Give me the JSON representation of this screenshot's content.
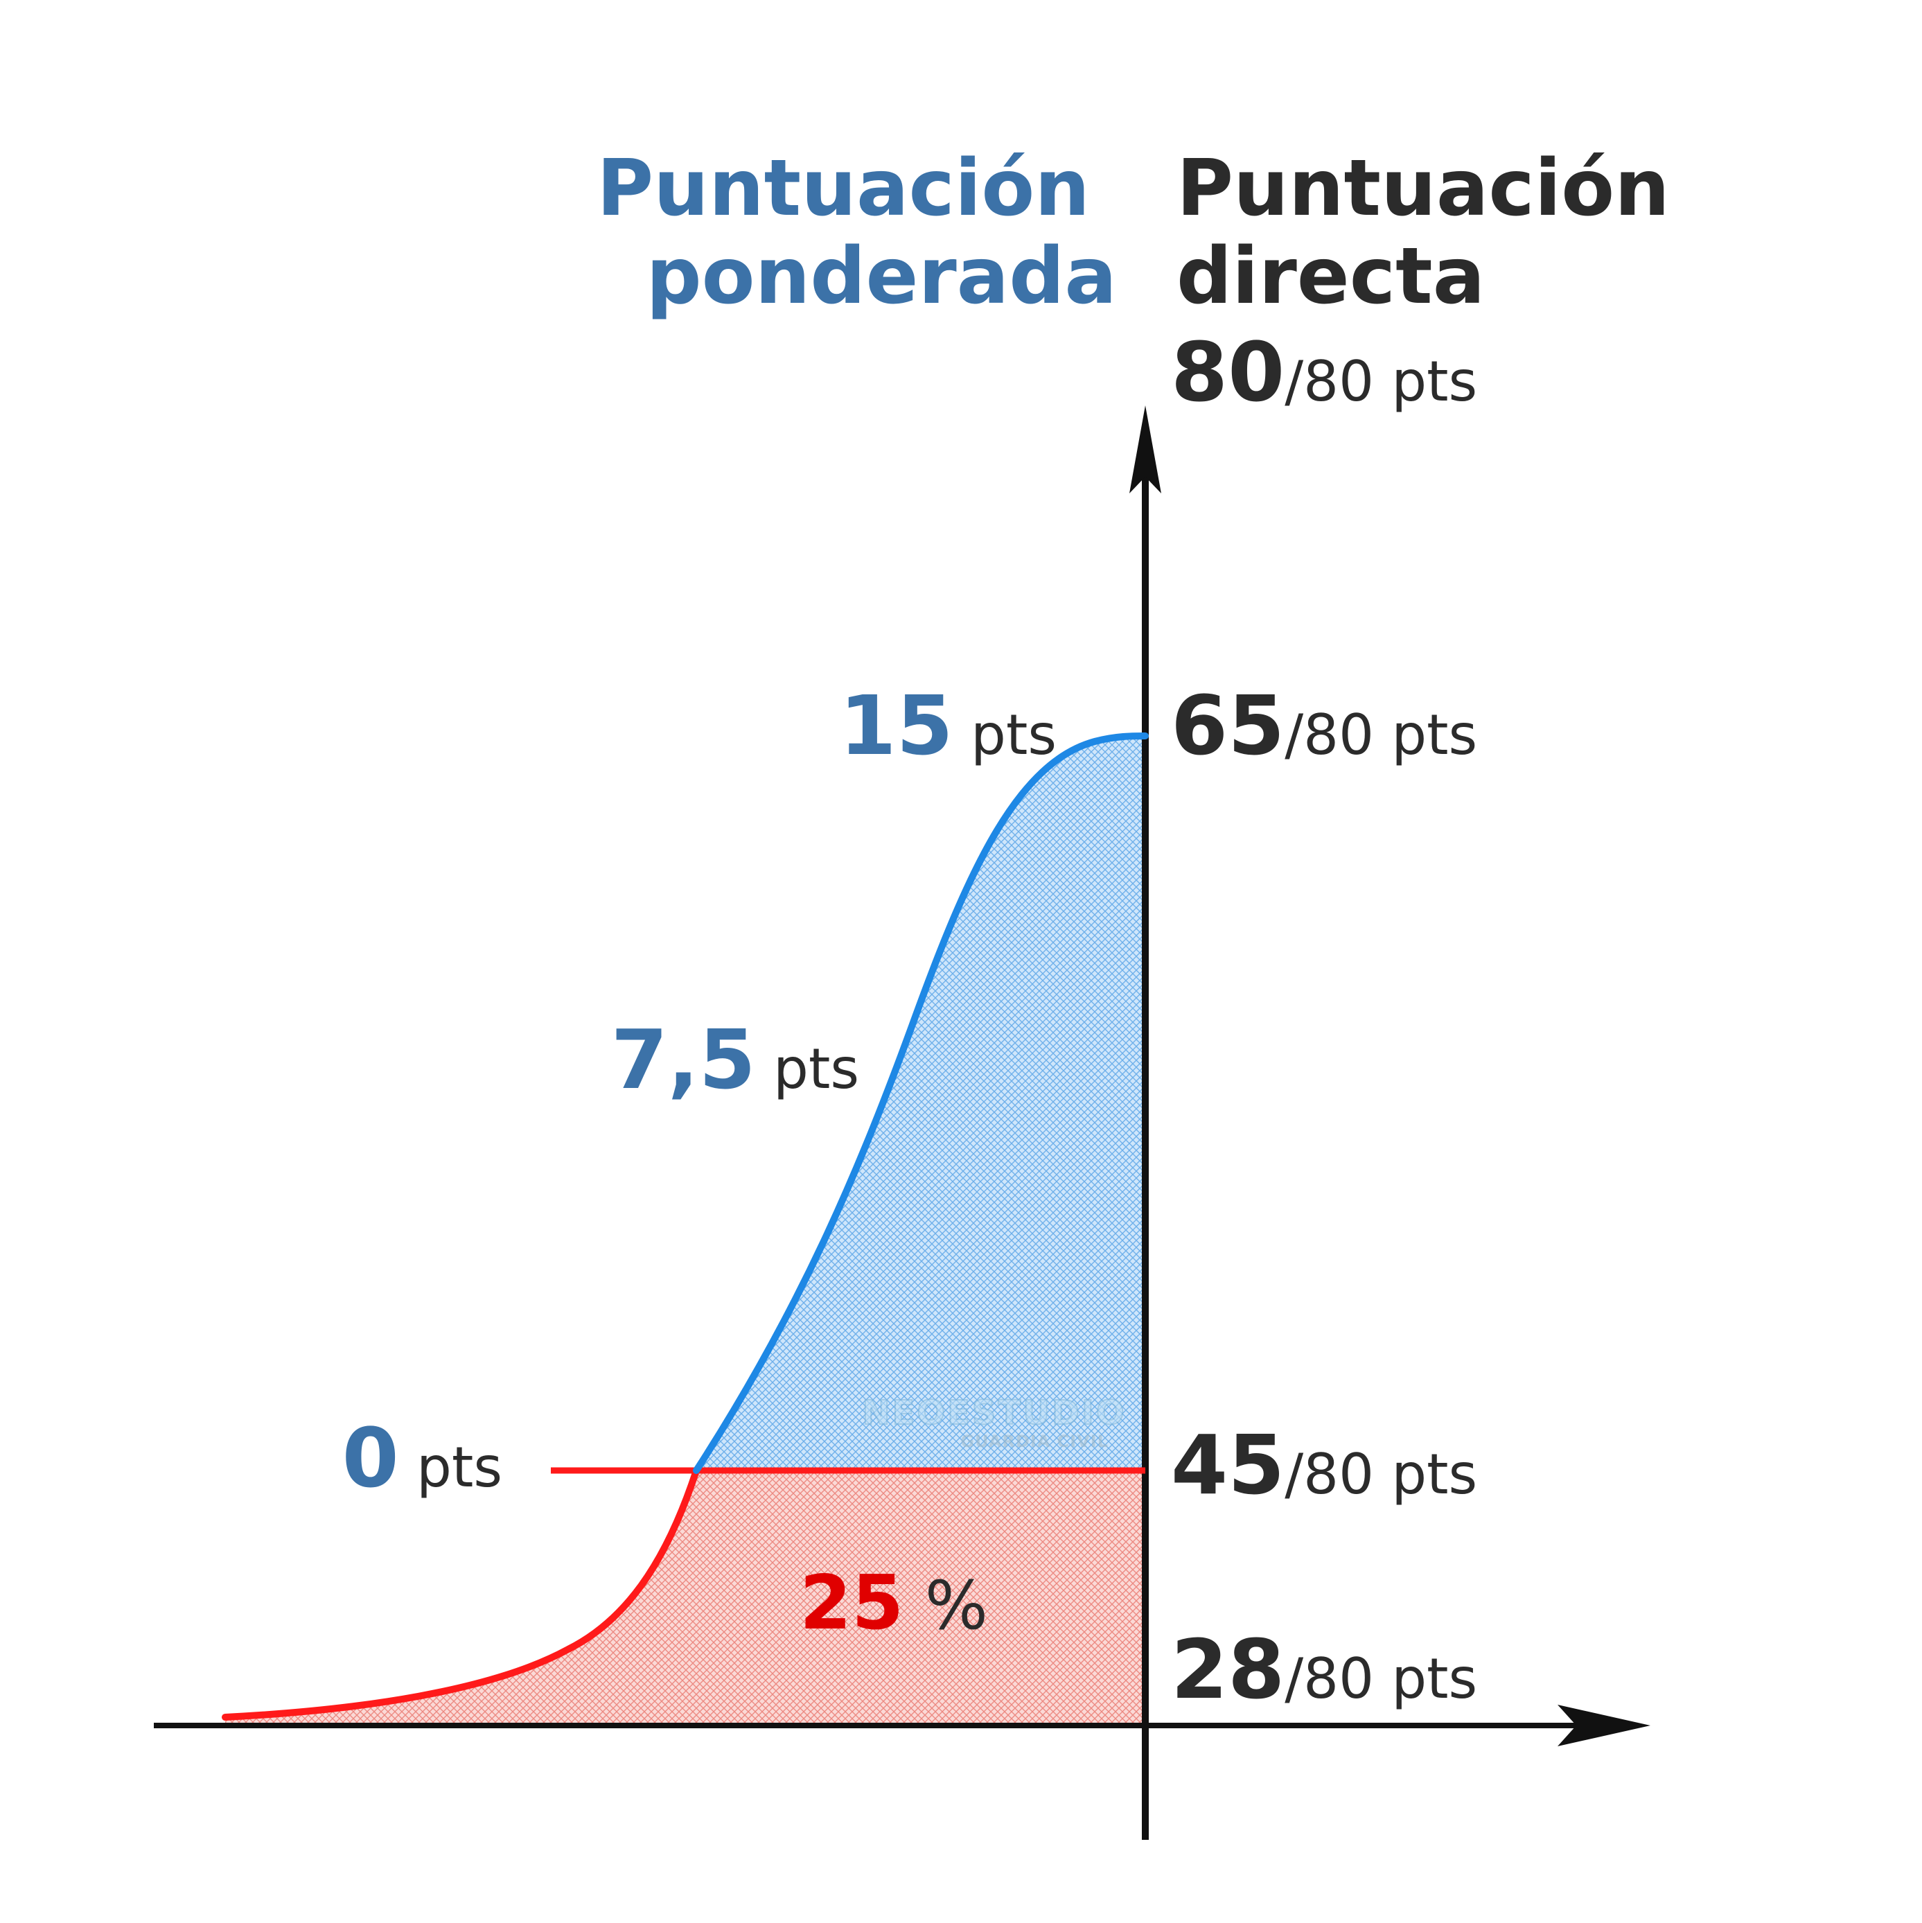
{
  "chart_data": {
    "type": "area",
    "titles": {
      "weighted": [
        "Puntuación",
        "ponderada"
      ],
      "direct": [
        "Puntuación",
        "directa"
      ]
    },
    "direct_scale": {
      "max": 80,
      "ticks": [
        {
          "value": 80,
          "big": "80",
          "suffix": "/80 pts"
        },
        {
          "value": 65,
          "big": "65",
          "suffix": "/80 pts"
        },
        {
          "value": 45,
          "big": "45",
          "suffix": "/80 pts"
        },
        {
          "value": 28,
          "big": "28",
          "suffix": "/80 pts"
        }
      ]
    },
    "weighted_labels": [
      {
        "big": "15",
        "suffix": " pts",
        "direct": 65
      },
      {
        "big": "7,5",
        "suffix": " pts",
        "direct": 55
      },
      {
        "big": "0",
        "suffix": " pts",
        "direct": 45
      }
    ],
    "threshold": {
      "direct": 45,
      "percent_big": "25",
      "percent_suffix": " %"
    },
    "colors": {
      "blue_curve": "#1e88e5",
      "blue_fill": "#9ecbf3",
      "red_curve": "#ff1a1a",
      "red_fill": "#f4a9a3",
      "title_blue": "#3c72a8",
      "percent_red": "#e00000",
      "axis": "#111111"
    },
    "watermark": {
      "line1": "NEOESTUDIO",
      "line2": "GUARDIA CIVIL"
    }
  }
}
